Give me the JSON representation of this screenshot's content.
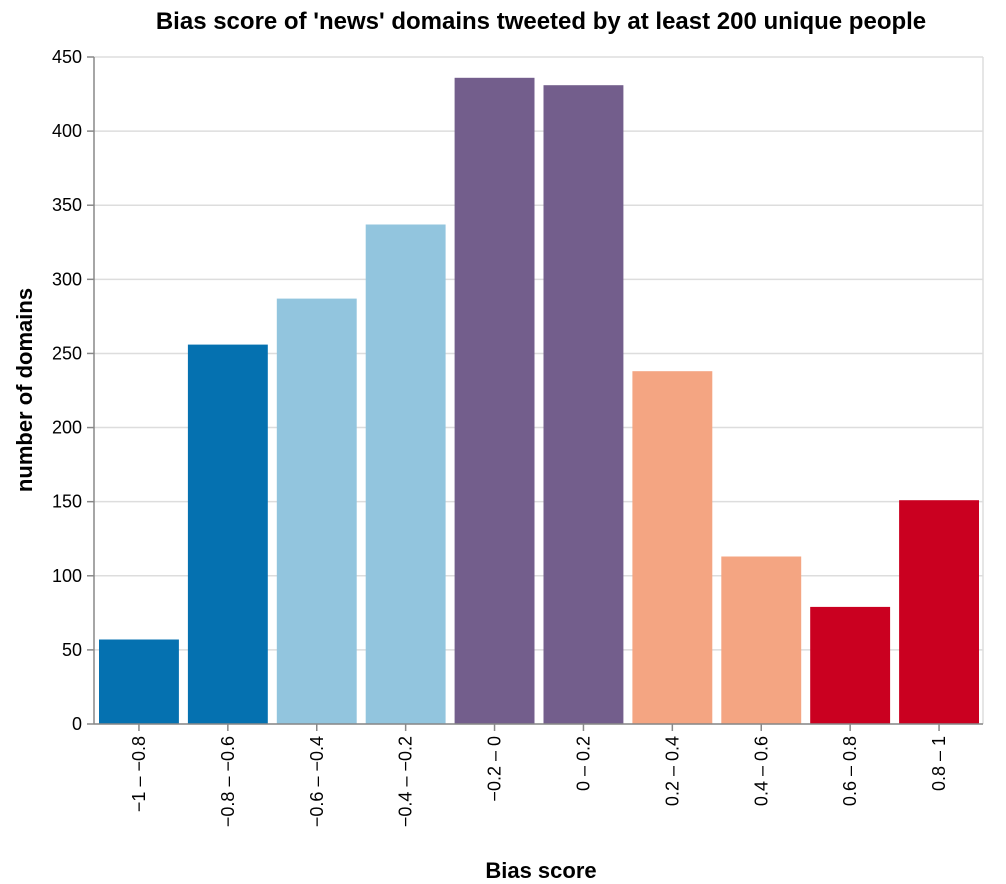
{
  "chart_data": {
    "type": "bar",
    "title": "Bias score of 'news' domains tweeted by at least 200 unique people",
    "xlabel": "Bias score",
    "ylabel": "number of domains",
    "ylim": [
      0,
      450
    ],
    "yticks": [
      0,
      50,
      100,
      150,
      200,
      250,
      300,
      350,
      400,
      450
    ],
    "grid": true,
    "categories": [
      "−1 – −0.8",
      "−0.8 – −0.6",
      "−0.6 – −0.4",
      "−0.4 – −0.2",
      "−0.2 – 0",
      "0 – 0.2",
      "0.2 – 0.4",
      "0.4 – 0.6",
      "0.6 – 0.8",
      "0.8 – 1"
    ],
    "values": [
      57,
      256,
      287,
      337,
      436,
      431,
      238,
      113,
      79,
      151
    ],
    "colors": [
      "#0571b0",
      "#0571b0",
      "#92c5de",
      "#92c5de",
      "#735e8c",
      "#735e8c",
      "#f4a582",
      "#f4a582",
      "#ca0020",
      "#ca0020"
    ]
  }
}
